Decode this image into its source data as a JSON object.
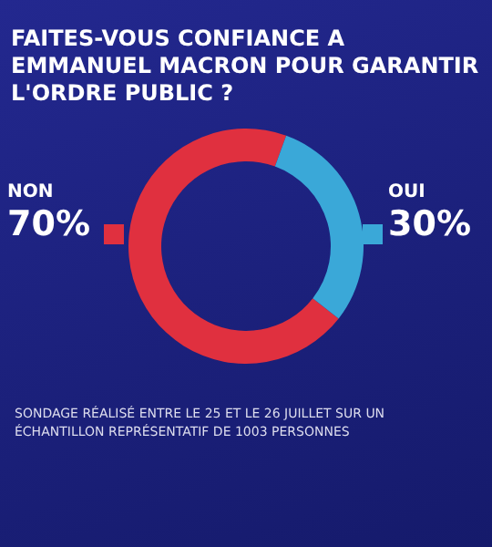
{
  "chart_data": {
    "type": "donut",
    "title": "FAITES-VOUS CONFIANCE A EMMANUEL MACRON POUR GARANTIR L'ORDRE PUBLIC ?",
    "categories": [
      "NON",
      "OUI"
    ],
    "values": [
      70,
      30
    ],
    "colors": [
      "#e0303f",
      "#3aa8d8"
    ],
    "value_labels": [
      "70%",
      "30%"
    ],
    "annotations": [
      "SONDAGE RÉALISÉ ENTRE LE 25 ET LE 26 JUILLET SUR UN ÉCHANTILLON REPRÉSENTATIF DE 1003 PERSONNES"
    ]
  }
}
